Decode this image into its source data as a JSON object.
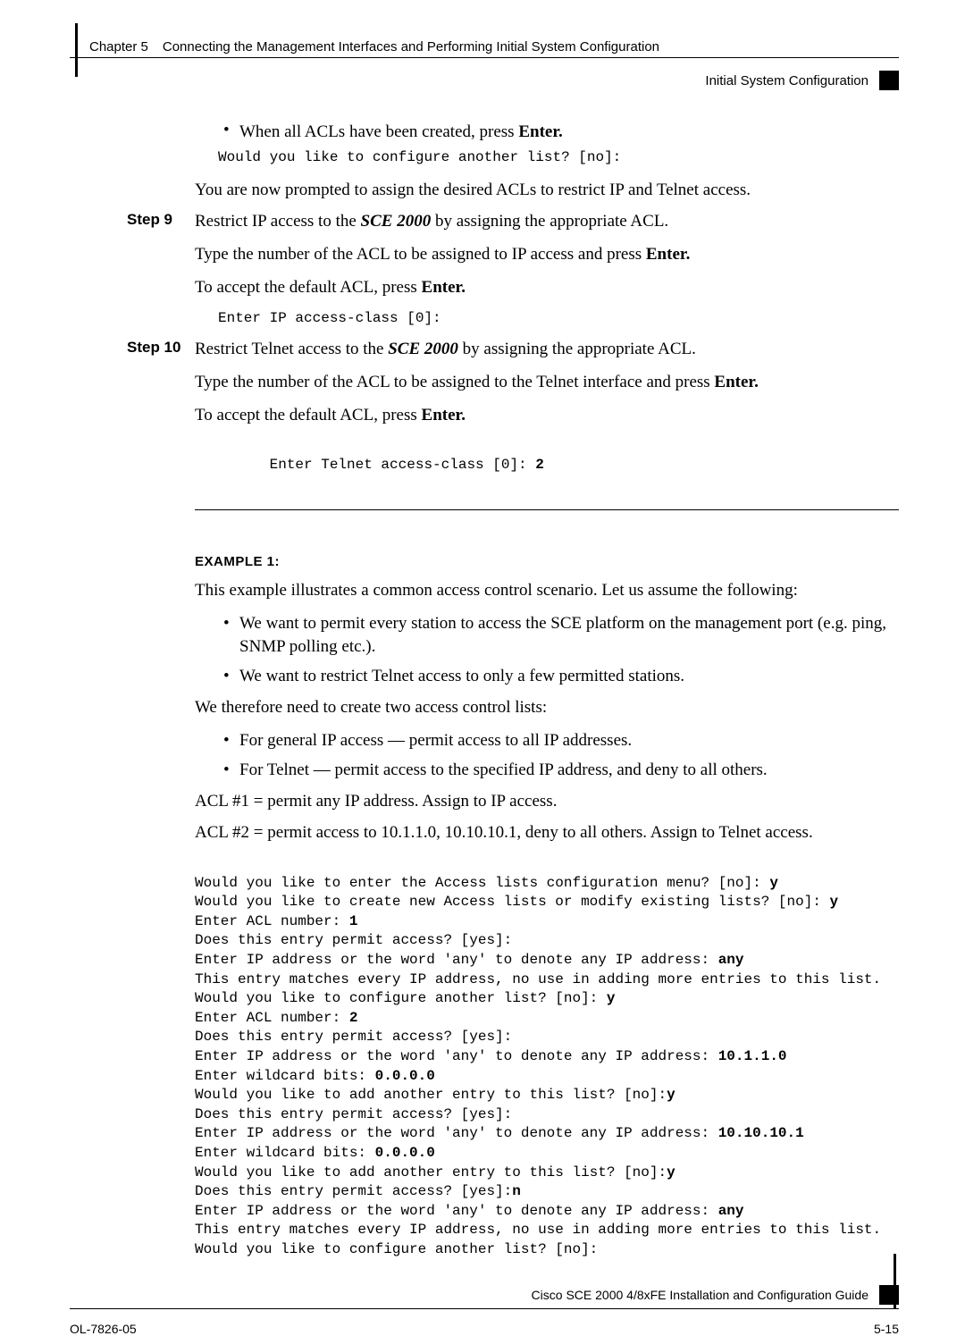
{
  "header": {
    "chapter": "Chapter 5",
    "title": "Connecting the Management Interfaces and Performing Initial System Configuration",
    "subtitle": "Initial System Configuration"
  },
  "s1": {
    "bullet_pre": "When all ACLs have been created, press ",
    "bullet_bold": "Enter.",
    "code": "Would you like to configure another list? [no]:",
    "after": "You are now prompted to assign the desired ACLs to restrict IP and Telnet access."
  },
  "step9": {
    "label": "Step 9",
    "l1_a": "Restrict IP access to the ",
    "l1_b": "SCE 2000",
    "l1_c": " by assigning the appropriate ACL.",
    "l2_a": "Type the number of the ACL to be assigned to IP access and press ",
    "l2_b": "Enter.",
    "l3_a": "To accept the default ACL, press ",
    "l3_b": "Enter.",
    "code": "Enter IP access-class [0]:"
  },
  "step10": {
    "label": "Step 10",
    "l1_a": "Restrict Telnet access to the ",
    "l1_b": "SCE 2000",
    "l1_c": " by assigning the appropriate ACL.",
    "l2_a": "Type the number of the ACL to be assigned to the Telnet interface and press ",
    "l2_b": "Enter.",
    "l3_a": "To accept the default ACL, press ",
    "l3_b": "Enter.",
    "code_a": "Enter Telnet access-class [0]: ",
    "code_b": "2"
  },
  "ex": {
    "head": "EXAMPLE 1:",
    "p1": "This example illustrates a common access control scenario. Let us assume the following:",
    "b1": "We want to permit every station to access the SCE platform on the management port (e.g. ping, SNMP polling etc.).",
    "b2": "We want to restrict Telnet access to only a few permitted stations.",
    "p2": "We therefore need to create two access control lists:",
    "b3": "For general IP access — permit access to all IP addresses.",
    "b4": "For Telnet — permit access to the specified IP address, and deny to all others.",
    "p3": "ACL #1 =  permit any IP address. Assign to IP access.",
    "p4": "ACL #2 = permit access to 10.1.1.0, 10.10.10.1, deny to all others. Assign to Telnet access."
  },
  "term": {
    "r01a": "Would you like to enter the Access lists configuration menu? [no]: ",
    "r01b": "y",
    "r02a": "Would you like to create new Access lists or modify existing lists? [no]: ",
    "r02b": "y",
    "r03a": "Enter ACL number: ",
    "r03b": "1",
    "r04": "Does this entry permit access? [yes]:",
    "r05a": "Enter IP address or the word 'any' to denote any IP address: ",
    "r05b": "any",
    "r06": "This entry matches every IP address, no use in adding more entries to this list.",
    "r07a": "Would you like to configure another list? [no]: ",
    "r07b": "y",
    "r08a": "Enter ACL number: ",
    "r08b": "2",
    "r09": "Does this entry permit access? [yes]:",
    "r10a": "Enter IP address or the word 'any' to denote any IP address: ",
    "r10b": "10.1.1.0",
    "r11a": "Enter wildcard bits: ",
    "r11b": "0.0.0.0",
    "r12a": "Would you like to add another entry to this list? [no]:",
    "r12b": "y",
    "r13": "Does this entry permit access? [yes]:",
    "r14a": "Enter IP address or the word 'any' to denote any IP address: ",
    "r14b": "10.10.10.1",
    "r15a": "Enter wildcard bits: ",
    "r15b": "0.0.0.0",
    "r16a": "Would you like to add another entry to this list? [no]:",
    "r16b": "y",
    "r17a": "Does this entry permit access? [yes]:",
    "r17b": "n",
    "r18a": "Enter IP address or the word 'any' to denote any IP address: ",
    "r18b": "any",
    "r19": "This entry matches every IP address, no use in adding more entries to this list.",
    "r20": "Would you like to configure another list? [no]:"
  },
  "footer": {
    "guide": "Cisco SCE 2000 4/8xFE Installation and Configuration Guide",
    "left": "OL-7826-05",
    "right": "5-15"
  },
  "colors": {
    "text": "#000000",
    "background": "#ffffff"
  }
}
